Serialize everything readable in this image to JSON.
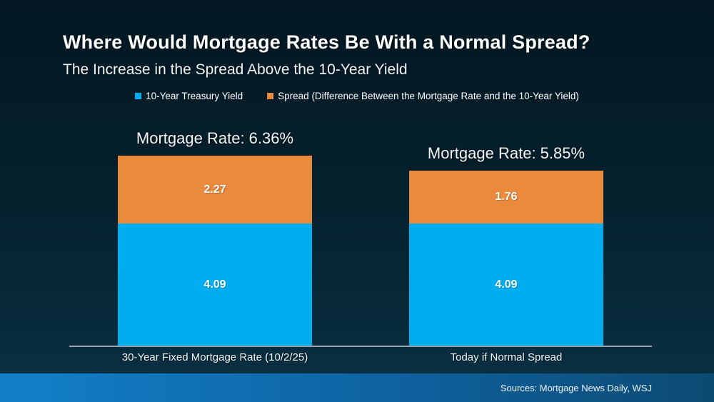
{
  "slide": {
    "title": "Where Would Mortgage Rates Be With a Normal Spread?",
    "subtitle": "The Increase in the Spread Above the 10-Year Yield",
    "source": "Sources: Mortgage News Daily, WSJ"
  },
  "colors": {
    "treasury_blue": "#00adef",
    "spread_orange": "#e98a3d",
    "background_top": "#031823",
    "background_bottom": "#0a3143",
    "footer_gradient_left": "#1280c9",
    "footer_gradient_right": "#0c4a72",
    "axis_line": "#99a1ab",
    "text": "#ffffff"
  },
  "legend": {
    "items": [
      {
        "label": "10-Year Treasury Yield",
        "color": "#00adef"
      },
      {
        "label": "Spread (Difference Between the Mortgage Rate and the 10-Year Yield)",
        "color": "#e98a3d"
      }
    ]
  },
  "chart_data": {
    "type": "bar",
    "stacked": true,
    "orientation": "vertical",
    "title": "Where Would Mortgage Rates Be With a Normal Spread?",
    "subtitle": "The Increase in the Spread Above the 10-Year Yield",
    "categories": [
      "30-Year Fixed Mortgage Rate (10/2/25)",
      "Today if Normal Spread"
    ],
    "series": [
      {
        "name": "10-Year Treasury Yield",
        "color": "#00adef",
        "values": [
          4.09,
          4.09
        ]
      },
      {
        "name": "Spread (Difference Between the Mortgage Rate and the 10-Year Yield)",
        "color": "#e98a3d",
        "values": [
          2.27,
          1.76
        ]
      }
    ],
    "totals": [
      6.36,
      5.85
    ],
    "total_labels": [
      "Mortgage Rate: 6.36%",
      "Mortgage Rate: 5.85%"
    ],
    "xlabel": "",
    "ylabel": "",
    "ylim": [
      0,
      7.5
    ],
    "grid": false,
    "y_axis_shown": false,
    "legend_position": "top",
    "value_labels_shown": true
  }
}
